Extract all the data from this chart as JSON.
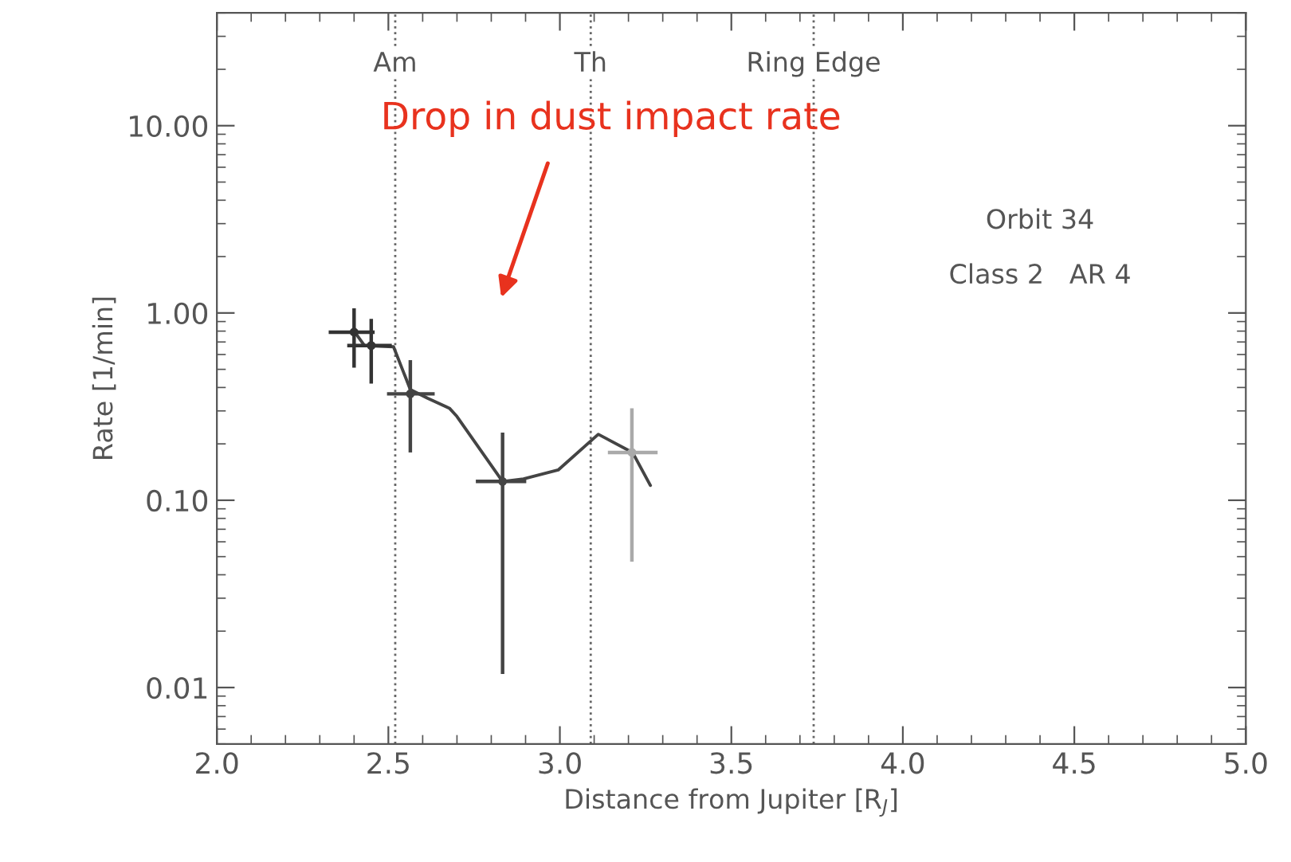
{
  "chart_data": {
    "type": "scatter",
    "xlabel": "Distance from Jupiter [R$_{J}$]",
    "ylabel": "Rate [1/min]",
    "xlim": [
      2.0,
      5.0
    ],
    "xticks": [
      {
        "value": 2.0,
        "label": "2.0"
      },
      2.5,
      {
        "value": 3.0,
        "label": "3.0"
      },
      3.5,
      {
        "value": 4.0,
        "label": "4.0"
      },
      4.5,
      {
        "value": 5.0,
        "label": "5.0"
      }
    ],
    "ylim": [
      0.005,
      40
    ],
    "log": "y",
    "yticks": [
      {
        "value": 0.01,
        "label": "0.01"
      },
      {
        "value": 0.1,
        "label": "0.10"
      },
      {
        "value": 1,
        "label": "1.00"
      },
      {
        "value": 10,
        "label": "10.00"
      }
    ],
    "grid": false,
    "legend": false,
    "series": [
      {
        "type": "line",
        "color": "#444444",
        "line_style": "solid",
        "marker": "none",
        "x": [
          2.4,
          2.43,
          2.515,
          2.564,
          2.615,
          2.678,
          2.7,
          2.833,
          2.894,
          2.995,
          3.112,
          3.212,
          3.264
        ],
        "values": [
          0.8,
          0.67,
          0.66,
          0.39,
          0.35,
          0.31,
          0.28,
          0.126,
          0.13,
          0.145,
          0.225,
          0.18,
          0.12
        ]
      },
      {
        "marker": "circle",
        "colors": [
          "#333333",
          "#333333",
          "#444444",
          "#444444",
          "#aaaaaa"
        ],
        "x": [
          2.4,
          2.45,
          2.564,
          2.833,
          3.21
        ],
        "values": [
          0.79,
          0.67,
          0.37,
          0.126,
          0.18
        ],
        "errors": [
          [
            0.51,
            1.06
          ],
          [
            0.42,
            0.93
          ],
          [
            0.18,
            0.56
          ],
          [
            0.0118,
            0.23
          ],
          [
            0.047,
            0.31
          ]
        ],
        "xerrors": [
          [
            2.326,
            2.46
          ],
          [
            2.38,
            2.51
          ],
          [
            2.496,
            2.635
          ],
          [
            2.755,
            2.902
          ],
          [
            3.14,
            3.285
          ]
        ]
      }
    ],
    "ref_lines": [
      {
        "axis": "x",
        "value": 2.52,
        "label": "Am",
        "color": "#666666",
        "line_style": "dotted"
      },
      {
        "axis": "x",
        "value": 3.09,
        "label": "Th",
        "color": "#666666",
        "line_style": "dotted"
      },
      {
        "axis": "x",
        "value": 3.74,
        "label": "Ring Edge",
        "color": "#666666",
        "line_style": "dotted"
      }
    ],
    "annotations": [
      "Drop in dust impact rate",
      "Orbit 34",
      "Class 2   AR 4"
    ]
  }
}
